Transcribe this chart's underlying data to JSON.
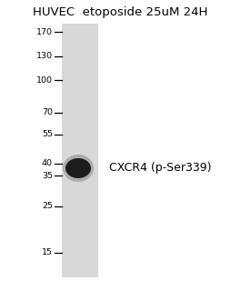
{
  "title": "HUVEC  etoposide 25uM 24H",
  "title_fontsize": 9.5,
  "annotation_label": "CXCR4 (p-Ser339)",
  "annotation_label_fontsize": 9,
  "mw_markers": [
    170,
    130,
    100,
    70,
    55,
    40,
    35,
    25,
    15
  ],
  "lane_color": "#d8d8d8",
  "band_color": "#111111",
  "background_color": "#ffffff",
  "fig_width": 2.65,
  "fig_height": 3.2,
  "dpi": 100
}
